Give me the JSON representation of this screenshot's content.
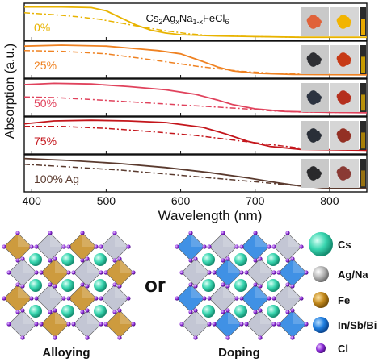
{
  "chart_data": {
    "type": "line",
    "title_parts": {
      "a": "Cs",
      "a_sub": "2",
      "b": "Ag",
      "b_sub": "x",
      "c": "Na",
      "c_sub": "1-x",
      "d": "FeCl",
      "d_sub": "6"
    },
    "xlabel": "Wavelength (nm)",
    "ylabel": "Absorption (a.u.)",
    "xlim": [
      390,
      850
    ],
    "xticks": [
      "400",
      "500",
      "600",
      "700",
      "800"
    ],
    "xtick_values": [
      400,
      500,
      600,
      700,
      800
    ],
    "line_styles": [
      "solid",
      "dash-dot"
    ],
    "panels": [
      {
        "label": "0%",
        "color": "#e8b300",
        "solid": [
          [
            390,
            0.96
          ],
          [
            440,
            0.96
          ],
          [
            480,
            0.94
          ],
          [
            500,
            0.84
          ],
          [
            520,
            0.62
          ],
          [
            540,
            0.4
          ],
          [
            560,
            0.24
          ],
          [
            580,
            0.15
          ],
          [
            600,
            0.1
          ],
          [
            650,
            0.06
          ],
          [
            700,
            0.04
          ],
          [
            760,
            0.02
          ],
          [
            850,
            0.02
          ]
        ],
        "dashed": [
          [
            390,
            0.78
          ],
          [
            430,
            0.72
          ],
          [
            460,
            0.66
          ],
          [
            490,
            0.58
          ],
          [
            520,
            0.46
          ],
          [
            550,
            0.33
          ],
          [
            580,
            0.22
          ],
          [
            610,
            0.13
          ],
          [
            640,
            0.07
          ],
          [
            700,
            0.04
          ],
          [
            760,
            0.02
          ],
          [
            850,
            0.02
          ]
        ]
      },
      {
        "label": "25%",
        "color": "#ef8222",
        "solid": [
          [
            390,
            0.92
          ],
          [
            440,
            0.95
          ],
          [
            500,
            0.92
          ],
          [
            540,
            0.84
          ],
          [
            570,
            0.78
          ],
          [
            600,
            0.68
          ],
          [
            630,
            0.44
          ],
          [
            650,
            0.27
          ],
          [
            670,
            0.15
          ],
          [
            700,
            0.08
          ],
          [
            750,
            0.04
          ],
          [
            850,
            0.03
          ]
        ],
        "dashed": [
          [
            390,
            0.78
          ],
          [
            440,
            0.76
          ],
          [
            500,
            0.68
          ],
          [
            560,
            0.5
          ],
          [
            620,
            0.3
          ],
          [
            680,
            0.14
          ],
          [
            730,
            0.07
          ],
          [
            780,
            0.04
          ],
          [
            850,
            0.03
          ]
        ]
      },
      {
        "label": "50%",
        "color": "#e0425c",
        "solid": [
          [
            390,
            0.9
          ],
          [
            430,
            0.94
          ],
          [
            480,
            0.92
          ],
          [
            530,
            0.84
          ],
          [
            580,
            0.74
          ],
          [
            620,
            0.6
          ],
          [
            650,
            0.42
          ],
          [
            670,
            0.28
          ],
          [
            700,
            0.15
          ],
          [
            740,
            0.07
          ],
          [
            800,
            0.04
          ],
          [
            850,
            0.03
          ]
        ],
        "dashed": [
          [
            390,
            0.52
          ],
          [
            430,
            0.5
          ],
          [
            480,
            0.44
          ],
          [
            530,
            0.37
          ],
          [
            580,
            0.3
          ],
          [
            630,
            0.23
          ],
          [
            680,
            0.16
          ],
          [
            720,
            0.09
          ],
          [
            760,
            0.05
          ],
          [
            850,
            0.03
          ]
        ]
      },
      {
        "label": "75%",
        "color": "#c4161c",
        "solid": [
          [
            390,
            0.86
          ],
          [
            430,
            0.95
          ],
          [
            480,
            0.97
          ],
          [
            530,
            0.95
          ],
          [
            580,
            0.9
          ],
          [
            630,
            0.75
          ],
          [
            660,
            0.55
          ],
          [
            690,
            0.32
          ],
          [
            720,
            0.16
          ],
          [
            760,
            0.07
          ],
          [
            850,
            0.04
          ]
        ],
        "dashed": [
          [
            390,
            0.78
          ],
          [
            440,
            0.78
          ],
          [
            500,
            0.72
          ],
          [
            560,
            0.62
          ],
          [
            620,
            0.5
          ],
          [
            670,
            0.36
          ],
          [
            720,
            0.22
          ],
          [
            760,
            0.11
          ],
          [
            800,
            0.06
          ],
          [
            850,
            0.04
          ]
        ]
      },
      {
        "label": "100% Ag",
        "color": "#5a3a2e",
        "solid": [
          [
            390,
            0.96
          ],
          [
            450,
            0.9
          ],
          [
            520,
            0.8
          ],
          [
            580,
            0.68
          ],
          [
            640,
            0.52
          ],
          [
            690,
            0.36
          ],
          [
            730,
            0.21
          ],
          [
            760,
            0.11
          ],
          [
            790,
            0.05
          ],
          [
            850,
            0.03
          ]
        ],
        "dashed": [
          [
            390,
            0.78
          ],
          [
            450,
            0.7
          ],
          [
            520,
            0.6
          ],
          [
            580,
            0.48
          ],
          [
            640,
            0.36
          ],
          [
            700,
            0.24
          ],
          [
            750,
            0.13
          ],
          [
            790,
            0.06
          ],
          [
            850,
            0.03
          ]
        ]
      }
    ]
  },
  "photos": [
    {
      "powder1": "#e0623a",
      "powder2": "#f2b400",
      "cuvette": "#e8a800"
    },
    {
      "powder1": "#2e2f33",
      "powder2": "#c73a16",
      "cuvette": "#c79a00"
    },
    {
      "powder1": "#2c3340",
      "powder2": "#b5301e",
      "cuvette": "#b8900a"
    },
    {
      "powder1": "#2a2f38",
      "powder2": "#933024",
      "cuvette": "#a88008"
    },
    {
      "powder1": "#2a2a2c",
      "powder2": "#8a3a34",
      "cuvette": "#967010"
    }
  ],
  "structures": {
    "alloy": {
      "label": "Alloying",
      "oct_a": "#c48a1c",
      "oct_b": "#b8bccc",
      "cs": "#39d6b0"
    },
    "dope": {
      "label": "Doping",
      "oct_a": "#1e7ee0",
      "oct_b": "#b8bccc",
      "cs": "#39d6b0"
    },
    "connector": "or"
  },
  "legend": [
    {
      "label": "Cs",
      "color": "#39d6b0",
      "kind": "big"
    },
    {
      "label": "Ag/Na",
      "color": "#b0b0b0",
      "kind": "small"
    },
    {
      "label": "Fe",
      "color": "#c48a1c",
      "kind": "small"
    },
    {
      "label": "In/Sb/Bi",
      "color": "#1e7ee0",
      "kind": "small"
    },
    {
      "label": "Cl",
      "color": "#8a2bd6",
      "kind": "tiny"
    }
  ]
}
